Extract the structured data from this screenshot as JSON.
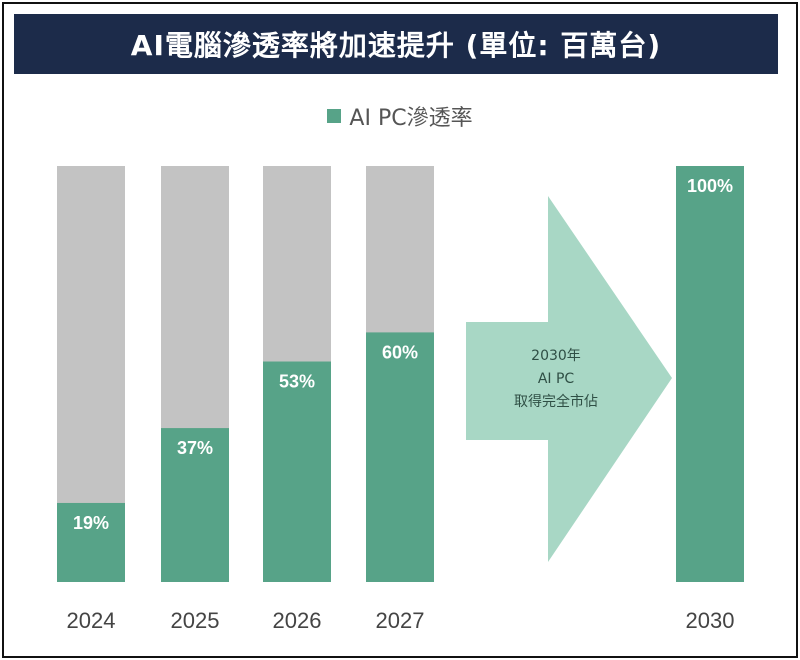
{
  "title": "AI電腦滲透率將加速提升 (單位: 百萬台)",
  "legend": {
    "label": "AI PC滲透率"
  },
  "colors": {
    "filled": "#57a388",
    "remaining": "#c3c3c3",
    "arrow": "#a8d7c5",
    "title_bg": "#1c2b4a"
  },
  "annotation": {
    "lines": [
      "2030年",
      "AI PC",
      "取得完全市佔"
    ]
  },
  "chart_data": {
    "type": "bar",
    "stacked": true,
    "categories": [
      "2024",
      "2025",
      "2026",
      "2027",
      "2030"
    ],
    "values": [
      19,
      37,
      53,
      60,
      100
    ],
    "value_labels": [
      "19%",
      "37%",
      "53%",
      "60%",
      "100%"
    ],
    "title": "AI電腦滲透率將加速提升 (單位: 百萬台)",
    "xlabel": "",
    "ylabel": "",
    "ylim": [
      0,
      100
    ],
    "grid": false,
    "legend_position": "top-center"
  }
}
